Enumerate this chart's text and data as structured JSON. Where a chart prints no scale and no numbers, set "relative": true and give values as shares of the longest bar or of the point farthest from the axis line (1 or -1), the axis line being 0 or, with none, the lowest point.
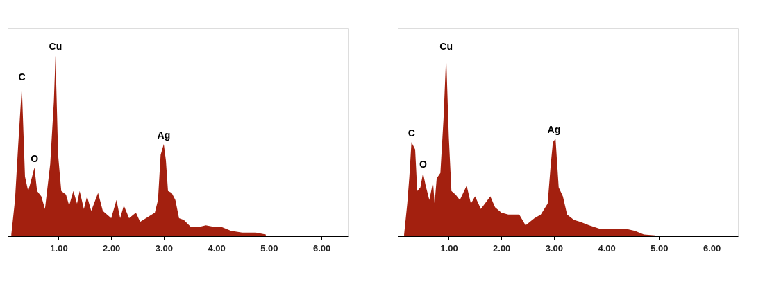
{
  "chart_data": [
    {
      "type": "area",
      "relative": true,
      "color": "#a3200f",
      "grid": false,
      "x": [
        0.1,
        0.17,
        0.23,
        0.3,
        0.36,
        0.42,
        0.46,
        0.54,
        0.59,
        0.67,
        0.74,
        0.78,
        0.84,
        0.91,
        0.94,
        0.99,
        1.05,
        1.14,
        1.2,
        1.28,
        1.35,
        1.4,
        1.48,
        1.54,
        1.62,
        1.75,
        1.84,
        1.92,
        2.0,
        2.1,
        2.17,
        2.24,
        2.34,
        2.47,
        2.55,
        2.72,
        2.83,
        2.89,
        2.94,
        3.0,
        3.04,
        3.08,
        3.15,
        3.22,
        3.29,
        3.38,
        3.52,
        3.65,
        3.8,
        3.99,
        4.11,
        4.28,
        4.49,
        4.75,
        4.94
      ],
      "values": [
        0.01,
        0.2,
        0.5,
        0.83,
        0.33,
        0.25,
        0.29,
        0.38,
        0.25,
        0.22,
        0.15,
        0.25,
        0.4,
        0.75,
        1.0,
        0.45,
        0.25,
        0.23,
        0.17,
        0.25,
        0.18,
        0.25,
        0.15,
        0.22,
        0.14,
        0.24,
        0.14,
        0.12,
        0.1,
        0.2,
        0.1,
        0.17,
        0.1,
        0.13,
        0.08,
        0.11,
        0.13,
        0.2,
        0.45,
        0.51,
        0.42,
        0.25,
        0.24,
        0.2,
        0.1,
        0.09,
        0.05,
        0.05,
        0.06,
        0.05,
        0.05,
        0.03,
        0.02,
        0.02,
        0.01
      ],
      "xlim": [
        0.03,
        6.5
      ],
      "xticks": [
        {
          "value": 1,
          "label": "1.00"
        },
        {
          "value": 2,
          "label": "2.00"
        },
        {
          "value": 3,
          "label": "3.00"
        },
        {
          "value": 4,
          "label": "4.00"
        },
        {
          "value": 5,
          "label": "5.00"
        },
        {
          "value": 6,
          "label": "6.00"
        }
      ],
      "annotations": [
        {
          "text": "C",
          "x": 0.3,
          "y": 0.83
        },
        {
          "text": "O",
          "x": 0.54,
          "y": 0.38
        },
        {
          "text": "Cu",
          "x": 0.94,
          "y": 1.0
        },
        {
          "text": "Ag",
          "x": 3.0,
          "y": 0.51
        }
      ]
    },
    {
      "type": "area",
      "relative": true,
      "color": "#a3200f",
      "grid": false,
      "x": [
        0.15,
        0.21,
        0.25,
        0.29,
        0.36,
        0.4,
        0.46,
        0.51,
        0.56,
        0.63,
        0.7,
        0.73,
        0.77,
        0.84,
        0.9,
        0.95,
        1.0,
        1.05,
        1.13,
        1.21,
        1.34,
        1.42,
        1.5,
        1.61,
        1.79,
        1.88,
        2.0,
        2.13,
        2.34,
        2.46,
        2.63,
        2.75,
        2.88,
        2.94,
        2.98,
        3.03,
        3.09,
        3.17,
        3.25,
        3.38,
        3.5,
        3.67,
        3.88,
        4.13,
        4.38,
        4.54,
        4.71,
        4.92
      ],
      "values": [
        0.01,
        0.18,
        0.33,
        0.52,
        0.48,
        0.25,
        0.27,
        0.35,
        0.28,
        0.2,
        0.3,
        0.18,
        0.32,
        0.35,
        0.65,
        1.0,
        0.55,
        0.25,
        0.23,
        0.2,
        0.28,
        0.18,
        0.22,
        0.15,
        0.22,
        0.16,
        0.13,
        0.12,
        0.12,
        0.06,
        0.1,
        0.12,
        0.18,
        0.4,
        0.52,
        0.54,
        0.27,
        0.22,
        0.12,
        0.09,
        0.08,
        0.06,
        0.04,
        0.04,
        0.04,
        0.03,
        0.01,
        0.005
      ],
      "xlim": [
        0.03,
        6.5
      ],
      "xticks": [
        {
          "value": 1,
          "label": "1.00"
        },
        {
          "value": 2,
          "label": "2.00"
        },
        {
          "value": 3,
          "label": "3.00"
        },
        {
          "value": 4,
          "label": "4.00"
        },
        {
          "value": 5,
          "label": "5.00"
        },
        {
          "value": 6,
          "label": "6.00"
        }
      ],
      "annotations": [
        {
          "text": "C",
          "x": 0.29,
          "y": 0.52
        },
        {
          "text": "O",
          "x": 0.51,
          "y": 0.35
        },
        {
          "text": "Cu",
          "x": 0.95,
          "y": 1.0
        },
        {
          "text": "Ag",
          "x": 3.0,
          "y": 0.54
        }
      ]
    }
  ]
}
